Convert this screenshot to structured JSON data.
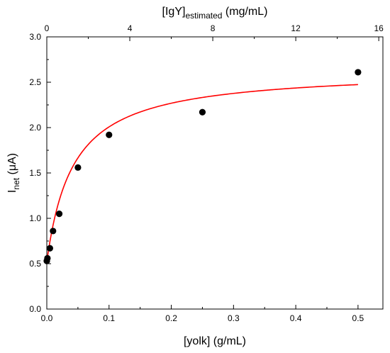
{
  "chart_data": {
    "type": "scatter",
    "xlabel": "[yolk] (g/mL)",
    "ylabel": {
      "main": "I",
      "sub": "net",
      "unit": " (μA)"
    },
    "top_xlabel": {
      "main": "[IgY]",
      "sub": "estimated",
      "unit": " (mg/mL)"
    },
    "xlim": [
      0,
      0.54
    ],
    "ylim": [
      0.0,
      3.0
    ],
    "top_xlim": [
      0,
      16.2
    ],
    "x_ticks": [
      "0.0",
      "0.1",
      "0.2",
      "0.3",
      "0.4",
      "0.5"
    ],
    "x_tick_values": [
      0,
      0.1,
      0.2,
      0.3,
      0.4,
      0.5
    ],
    "y_ticks": [
      "0.0",
      "0.5",
      "1.0",
      "1.5",
      "2.0",
      "2.5",
      "3.0"
    ],
    "y_tick_values": [
      0,
      0.5,
      1.0,
      1.5,
      2.0,
      2.5,
      3.0
    ],
    "top_ticks": [
      "0",
      "4",
      "8",
      "12",
      "16"
    ],
    "top_tick_values": [
      0,
      4,
      8,
      12,
      16
    ],
    "series": [
      {
        "kind": "points",
        "color": "#000000",
        "x": [
          0.0,
          0.001,
          0.005,
          0.01,
          0.02,
          0.05,
          0.1,
          0.25,
          0.5
        ],
        "y": [
          0.53,
          0.56,
          0.67,
          0.86,
          1.05,
          1.56,
          1.92,
          2.17,
          2.61
        ]
      },
      {
        "kind": "fit",
        "color": "#ff0000",
        "model": "saturation",
        "x_range": [
          0.0,
          0.5
        ]
      }
    ],
    "grid": false,
    "legend": "none"
  }
}
